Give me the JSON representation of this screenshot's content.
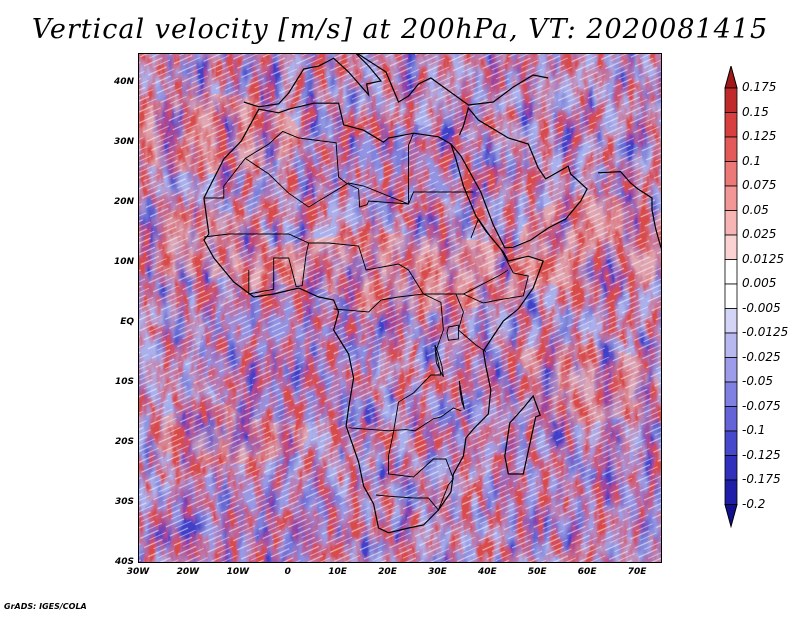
{
  "title": "Vertical velocity [m/s] at 200hPa, VT: 2020081415",
  "credit": "GrADS: IGES/COLA",
  "lat_labels": [
    "40N",
    "30N",
    "20N",
    "10N",
    "EQ",
    "10S",
    "20S",
    "30S",
    "40S"
  ],
  "lon_labels": [
    "30W",
    "20W",
    "10W",
    "0",
    "10E",
    "20E",
    "30E",
    "40E",
    "50E",
    "60E",
    "70E"
  ],
  "colorbar": {
    "levels": [
      "0.175",
      "0.15",
      "0.125",
      "0.1",
      "0.075",
      "0.05",
      "0.025",
      "0.0125",
      "0.005",
      "-0.005",
      "-0.0125",
      "-0.025",
      "-0.05",
      "-0.075",
      "-0.1",
      "-0.125",
      "-0.175",
      "-0.2"
    ],
    "colors": [
      "#a01818",
      "#c02a2a",
      "#d84040",
      "#e45a5a",
      "#ec7878",
      "#f29696",
      "#f7b4b4",
      "#fbd2d2",
      "#ffffff",
      "#ffffff",
      "#d4d4f6",
      "#b8b8f0",
      "#9c9cea",
      "#8080e2",
      "#6464d8",
      "#4848cc",
      "#3030bc",
      "#1e1ea8",
      "#101090"
    ]
  },
  "map": {
    "extent": {
      "lon_min": -30,
      "lon_max": 75,
      "lat_min": -40,
      "lat_max": 45
    },
    "positive_color": "#e86a6a",
    "negative_color": "#6a6ae0",
    "land_color": "#000000"
  }
}
